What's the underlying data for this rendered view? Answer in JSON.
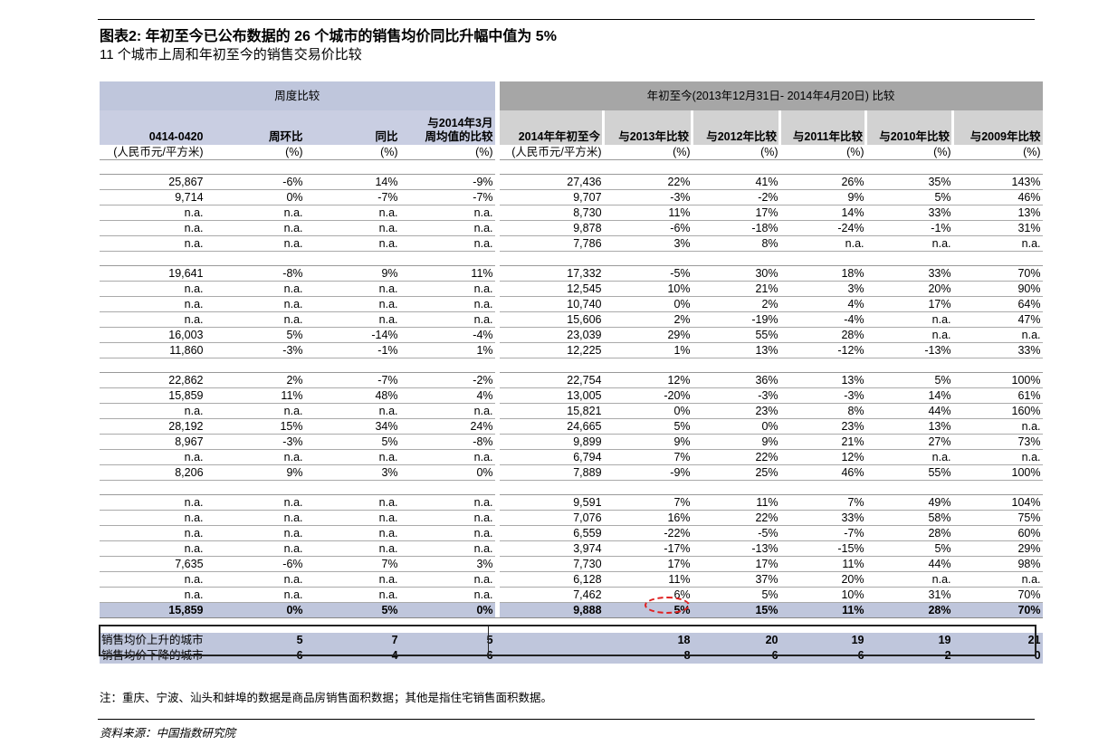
{
  "title": "图表2: 年初至今已公布数据的 26 个城市的销售均价同比升幅中值为 5%",
  "subtitle": "11 个城市上周和年初至今的销售交易价比较",
  "header": {
    "left_group": "周度比较",
    "right_group": "年初至今(2013年12月31日- 2014年4月20日) 比较",
    "columns": [
      "0414-0420",
      "周环比",
      "同比",
      "与2014年3月\n周均值的比较",
      "2014年年初至今",
      "与2013年比较",
      "与2012年比较",
      "与2011年比较",
      "与2010年比较",
      "与2009年比较"
    ],
    "units": [
      "(人民币元/平方米)",
      "(%)",
      "(%)",
      "(%)",
      "(人民币元/平方米)",
      "(%)",
      "(%)",
      "(%)",
      "(%)",
      "(%)"
    ]
  },
  "groups": [
    [
      [
        "25,867",
        "-6%",
        "14%",
        "-9%",
        "27,436",
        "22%",
        "41%",
        "26%",
        "35%",
        "143%"
      ],
      [
        "9,714",
        "0%",
        "-7%",
        "-7%",
        "9,707",
        "-3%",
        "-2%",
        "9%",
        "5%",
        "46%"
      ],
      [
        "n.a.",
        "n.a.",
        "n.a.",
        "n.a.",
        "8,730",
        "11%",
        "17%",
        "14%",
        "33%",
        "13%"
      ],
      [
        "n.a.",
        "n.a.",
        "n.a.",
        "n.a.",
        "9,878",
        "-6%",
        "-18%",
        "-24%",
        "-1%",
        "31%"
      ],
      [
        "n.a.",
        "n.a.",
        "n.a.",
        "n.a.",
        "7,786",
        "3%",
        "8%",
        "n.a.",
        "n.a.",
        "n.a."
      ]
    ],
    [
      [
        "19,641",
        "-8%",
        "9%",
        "11%",
        "17,332",
        "-5%",
        "30%",
        "18%",
        "33%",
        "70%"
      ],
      [
        "n.a.",
        "n.a.",
        "n.a.",
        "n.a.",
        "12,545",
        "10%",
        "21%",
        "3%",
        "20%",
        "90%"
      ],
      [
        "n.a.",
        "n.a.",
        "n.a.",
        "n.a.",
        "10,740",
        "0%",
        "2%",
        "4%",
        "17%",
        "64%"
      ],
      [
        "n.a.",
        "n.a.",
        "n.a.",
        "n.a.",
        "15,606",
        "2%",
        "-19%",
        "-4%",
        "n.a.",
        "47%"
      ],
      [
        "16,003",
        "5%",
        "-14%",
        "-4%",
        "23,039",
        "29%",
        "55%",
        "28%",
        "n.a.",
        "n.a."
      ],
      [
        "11,860",
        "-3%",
        "-1%",
        "1%",
        "12,225",
        "1%",
        "13%",
        "-12%",
        "-13%",
        "33%"
      ]
    ],
    [
      [
        "22,862",
        "2%",
        "-7%",
        "-2%",
        "22,754",
        "12%",
        "36%",
        "13%",
        "5%",
        "100%"
      ],
      [
        "15,859",
        "11%",
        "48%",
        "4%",
        "13,005",
        "-20%",
        "-3%",
        "-3%",
        "14%",
        "61%"
      ],
      [
        "n.a.",
        "n.a.",
        "n.a.",
        "n.a.",
        "15,821",
        "0%",
        "23%",
        "8%",
        "44%",
        "160%"
      ],
      [
        "28,192",
        "15%",
        "34%",
        "24%",
        "24,665",
        "5%",
        "0%",
        "23%",
        "13%",
        "n.a."
      ],
      [
        "8,967",
        "-3%",
        "5%",
        "-8%",
        "9,899",
        "9%",
        "9%",
        "21%",
        "27%",
        "73%"
      ],
      [
        "n.a.",
        "n.a.",
        "n.a.",
        "n.a.",
        "6,794",
        "7%",
        "22%",
        "12%",
        "n.a.",
        "n.a."
      ],
      [
        "8,206",
        "9%",
        "3%",
        "0%",
        "7,889",
        "-9%",
        "25%",
        "46%",
        "55%",
        "100%"
      ]
    ],
    [
      [
        "n.a.",
        "n.a.",
        "n.a.",
        "n.a.",
        "9,591",
        "7%",
        "11%",
        "7%",
        "49%",
        "104%"
      ],
      [
        "n.a.",
        "n.a.",
        "n.a.",
        "n.a.",
        "7,076",
        "16%",
        "22%",
        "33%",
        "58%",
        "75%"
      ],
      [
        "n.a.",
        "n.a.",
        "n.a.",
        "n.a.",
        "6,559",
        "-22%",
        "-5%",
        "-7%",
        "28%",
        "60%"
      ],
      [
        "n.a.",
        "n.a.",
        "n.a.",
        "n.a.",
        "3,974",
        "-17%",
        "-13%",
        "-15%",
        "5%",
        "29%"
      ],
      [
        "7,635",
        "-6%",
        "7%",
        "3%",
        "7,730",
        "17%",
        "17%",
        "11%",
        "44%",
        "98%"
      ],
      [
        "n.a.",
        "n.a.",
        "n.a.",
        "n.a.",
        "6,128",
        "11%",
        "37%",
        "20%",
        "n.a.",
        "n.a."
      ],
      [
        "n.a.",
        "n.a.",
        "n.a.",
        "n.a.",
        "7,462",
        "6%",
        "5%",
        "10%",
        "31%",
        "70%"
      ]
    ]
  ],
  "median": [
    "15,859",
    "0%",
    "5%",
    "0%",
    "9,888",
    "5%",
    "15%",
    "11%",
    "28%",
    "70%"
  ],
  "summary": [
    {
      "label": "销售均价上升的城市",
      "values": [
        "5",
        "7",
        "5",
        "",
        "18",
        "20",
        "19",
        "19",
        "21"
      ]
    },
    {
      "label": "销售均价下降的城市",
      "values": [
        "6",
        "4",
        "6",
        "",
        "8",
        "6",
        "6",
        "2",
        "0"
      ]
    }
  ],
  "highlight_color": "#e02020",
  "note": "注：重庆、宁波、汕头和蚌埠的数据是商品房销售面积数据；其他是指住宅销售面积数据。",
  "source": "资料来源：中国指数研究院"
}
